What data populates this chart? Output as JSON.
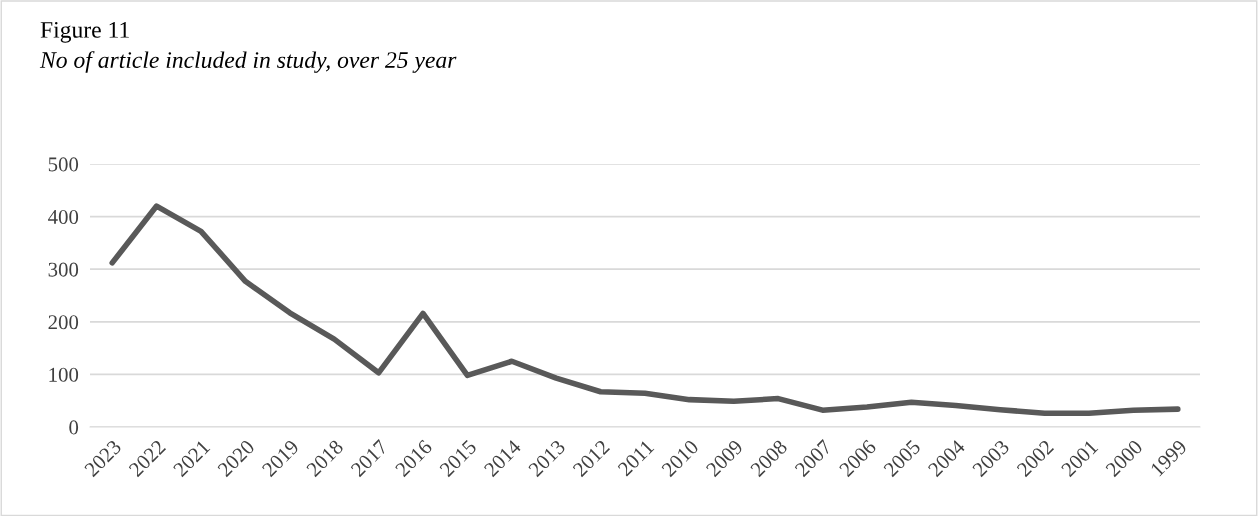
{
  "chart_data": {
    "type": "line",
    "title": "Figure 11",
    "subtitle": "No of article included in study, over 25 year",
    "categories": [
      "2023",
      "2022",
      "2021",
      "2020",
      "2019",
      "2018",
      "2017",
      "2016",
      "2015",
      "2014",
      "2013",
      "2012",
      "2011",
      "2010",
      "2009",
      "2008",
      "2007",
      "2006",
      "2005",
      "2004",
      "2003",
      "2002",
      "2001",
      "2000",
      "1999"
    ],
    "series": [
      {
        "color": "#595959",
        "values": [
          312,
          420,
          372,
          277,
          217,
          167,
          103,
          216,
          98,
          125,
          93,
          67,
          64,
          52,
          49,
          54,
          32,
          38,
          47,
          41,
          33,
          26,
          26,
          32,
          34
        ]
      }
    ],
    "ylim": [
      0,
      500
    ],
    "yticks": [
      0,
      100,
      200,
      300,
      400,
      500
    ],
    "grid": "y",
    "legend": false,
    "marker": "none",
    "line_style": "solid"
  }
}
